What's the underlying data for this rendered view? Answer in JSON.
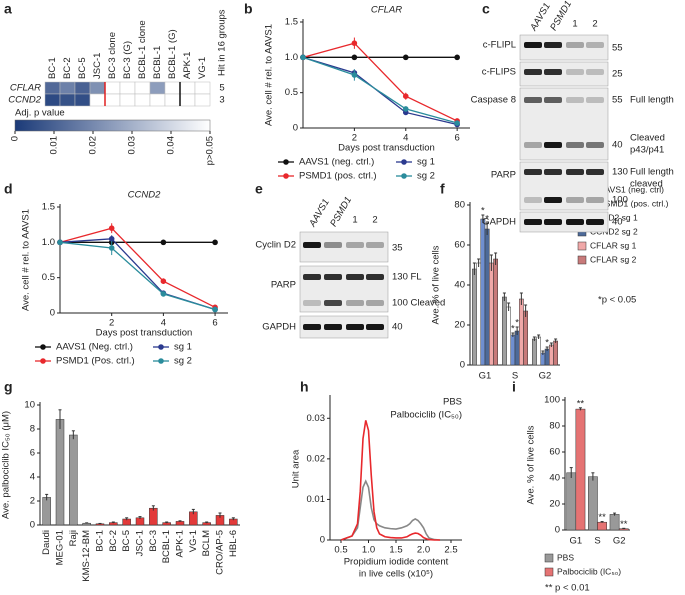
{
  "panel_labels": [
    "a",
    "b",
    "c",
    "d",
    "e",
    "f",
    "g",
    "h",
    "i"
  ],
  "chart_data": [
    {
      "type": "heatmap",
      "columns": [
        "BC-1",
        "BC-2",
        "BC-5",
        "JSC-1",
        "BC-3 clone",
        "BC-3 (G)",
        "BCBL-1 clone",
        "BCBL-1",
        "BCBL-1 (G)",
        "APK-1",
        "VG-1"
      ],
      "rows": [
        "CFLAR",
        "CCND2"
      ],
      "values": [
        [
          0.012,
          0.018,
          0.01,
          0.022,
          null,
          null,
          null,
          0.025,
          null,
          null,
          null
        ],
        [
          0.004,
          0.006,
          0.005,
          null,
          null,
          null,
          null,
          null,
          null,
          null,
          null
        ]
      ],
      "hits": [
        5,
        3
      ],
      "hits_title": "Hit in 16 groups",
      "colorbar_title": "Adj. p value",
      "clim": [
        0,
        0.05
      ],
      "cticks": [
        0,
        0.01,
        0.02,
        0.03,
        0.04,
        {
          "value": 0.05,
          "label": "p>0.05"
        }
      ],
      "colormap": [
        "#1b3a78",
        "#ffffff"
      ],
      "hits_color": "#3a9a6a"
    },
    {
      "type": "line",
      "title": "CFLAR",
      "ylabel": "Ave. cell # rel. to AAVS1",
      "xlabel": "Days post transduction",
      "x": [
        0,
        2,
        4,
        6
      ],
      "xlim": [
        0,
        6.5
      ],
      "xticks": [
        2,
        4,
        6
      ],
      "ylim": [
        0,
        1.5
      ],
      "yticks": [
        0,
        0.5,
        {
          "value": 1,
          "label": "1.0"
        },
        1.5
      ],
      "legend": "bottom",
      "series": [
        {
          "name": "AAVS1 (neg. ctrl.)",
          "color": "#111111",
          "values": [
            1,
            1,
            1,
            1
          ]
        },
        {
          "name": "PSMD1 (pos. ctrl.)",
          "color": "#e8282c",
          "values": [
            1,
            1.2,
            0.45,
            0.1
          ],
          "errors": [
            0,
            0.08,
            0.05,
            0.02
          ]
        },
        {
          "name": "sg 1",
          "color": "#2b3a8f",
          "values": [
            1,
            0.78,
            0.22,
            0.05
          ],
          "errors": [
            0,
            0.05,
            0.03,
            0.01
          ]
        },
        {
          "name": "sg 2",
          "color": "#2a8c9c",
          "values": [
            1,
            0.75,
            0.27,
            0.07
          ],
          "errors": [
            0,
            0.08,
            0.03,
            0.02
          ]
        }
      ]
    },
    {
      "type": "line",
      "title": "CCND2",
      "ylabel": "Ave. cell # rel. to AAVS1",
      "xlabel": "Days post transduction",
      "x": [
        0,
        2,
        4,
        6
      ],
      "xlim": [
        0,
        6.5
      ],
      "xticks": [
        2,
        4,
        6
      ],
      "ylim": [
        0,
        1.5
      ],
      "yticks": [
        0,
        0.5,
        {
          "value": 1,
          "label": "1.0"
        },
        1.5
      ],
      "legend": "bottom",
      "series": [
        {
          "name": "AAVS1 (Neg. ctrl.)",
          "color": "#111111",
          "values": [
            1,
            1,
            1,
            1
          ]
        },
        {
          "name": "PSMD1 (Pos. ctrl.)",
          "color": "#e8282c",
          "values": [
            1,
            1.2,
            0.45,
            0.08
          ],
          "errors": [
            0,
            0.07,
            0.04,
            0.02
          ]
        },
        {
          "name": "sg 1",
          "color": "#2b3a8f",
          "values": [
            1,
            1.05,
            0.28,
            0.05
          ],
          "errors": [
            0,
            0.05,
            0.03,
            0.01
          ]
        },
        {
          "name": "sg 2",
          "color": "#2a8c9c",
          "values": [
            1,
            0.92,
            0.27,
            0.05
          ],
          "errors": [
            0,
            0.1,
            0.03,
            0.01
          ]
        }
      ]
    },
    {
      "type": "bar",
      "ylabel": "Ave. % of live cells",
      "categories": [
        "G1",
        "S",
        "G2"
      ],
      "ylim": [
        0,
        80
      ],
      "yticks": [
        0,
        20,
        40,
        60,
        80
      ],
      "legend": "right",
      "series": [
        {
          "name": "sgAAVS1 (neg. ctrl)",
          "color": "#a0a0a0",
          "values": [
            48,
            34,
            13
          ],
          "errors": [
            3,
            2,
            1
          ]
        },
        {
          "name": "sgPSMD1 (pos. ctrl.)",
          "color": "#ffffff",
          "values": [
            51,
            29,
            14
          ],
          "errors": [
            2,
            2,
            1
          ]
        },
        {
          "name": "CCND2 sg 1",
          "color": "#6f8fd0",
          "values": [
            73,
            15,
            6
          ],
          "errors": [
            2,
            1,
            1
          ]
        },
        {
          "name": "CCND2 sg 2",
          "color": "#4d6a99",
          "values": [
            68,
            17,
            8
          ],
          "errors": [
            3,
            2,
            1
          ]
        },
        {
          "name": "CFLAR sg 1",
          "color": "#f0a8a8",
          "values": [
            51,
            33,
            10
          ],
          "errors": [
            4,
            3,
            1
          ]
        },
        {
          "name": "CFLAR sg 2",
          "color": "#c87a7a",
          "values": [
            53,
            27,
            12
          ],
          "errors": [
            3,
            3,
            1
          ]
        }
      ],
      "annotations": [
        "*",
        "*",
        "*",
        "*",
        "*"
      ],
      "note": "*p < 0.05"
    },
    {
      "type": "bar",
      "ylabel": "Ave. palbociclib IC₅₀ (μM)",
      "categories": [
        "Daudi",
        "MEG-01",
        "Raji",
        "KMS-12-BM",
        "BC-1",
        "BC-2",
        "BC-5",
        "JSC-1",
        "BC-3",
        "BCBL-1",
        "APK-1",
        "VG-1",
        "BCLM",
        "CRO/AP-5",
        "HBL-6"
      ],
      "ylim": [
        0,
        10
      ],
      "yticks": [
        0,
        2,
        4,
        6,
        8,
        10
      ],
      "rotate_labels": true,
      "series": [
        {
          "values": [
            2.3,
            8.8,
            7.5,
            0.15,
            0.1,
            0.2,
            0.5,
            0.6,
            1.4,
            0.2,
            0.3,
            1.1,
            0.2,
            0.8,
            0.5
          ],
          "errors": [
            0.25,
            0.8,
            0.35,
            0.03,
            0.03,
            0.05,
            0.1,
            0.1,
            0.2,
            0.05,
            0.05,
            0.2,
            0.05,
            0.2,
            0.1
          ],
          "colors": [
            "#999999",
            "#999999",
            "#999999",
            "#999999",
            "#e23a3a",
            "#e23a3a",
            "#e23a3a",
            "#e23a3a",
            "#e23a3a",
            "#e23a3a",
            "#e23a3a",
            "#e23a3a",
            "#e23a3a",
            "#e23a3a",
            "#e23a3a"
          ]
        }
      ]
    },
    {
      "type": "line",
      "ylabel": "Unit area",
      "xlabel": [
        "Propidium iodide content",
        "in live cells (x10⁵)"
      ],
      "x": [
        0.5,
        0.6,
        0.7,
        0.8,
        0.85,
        0.9,
        0.95,
        1.0,
        1.05,
        1.1,
        1.15,
        1.2,
        1.3,
        1.4,
        1.5,
        1.6,
        1.7,
        1.75,
        1.8,
        1.85,
        1.9,
        1.95,
        2.0,
        2.05,
        2.1,
        2.2,
        2.3
      ],
      "xlim": [
        0.3,
        2.7
      ],
      "xticks": [
        0.5,
        {
          "value": 1,
          "label": "1.0"
        },
        1.5,
        {
          "value": 2,
          "label": "2.0"
        },
        2.5
      ],
      "ylim": [
        0,
        0.035
      ],
      "yticks": [
        0,
        0.01,
        0.02,
        0.03
      ],
      "markers": false,
      "legend": "upper right",
      "series": [
        {
          "name": "PBS",
          "color": "#888888",
          "values": [
            0,
            0.0005,
            0.001,
            0.003,
            0.008,
            0.013,
            0.0145,
            0.013,
            0.008,
            0.005,
            0.004,
            0.0035,
            0.003,
            0.0028,
            0.0027,
            0.003,
            0.0035,
            0.004,
            0.0048,
            0.0052,
            0.0048,
            0.004,
            0.003,
            0.0015,
            0.0005,
            0.0001,
            0
          ]
        },
        {
          "name": "Palbociclib (IC₅₀)",
          "color": "#e8282c",
          "values": [
            0,
            0.0005,
            0.001,
            0.004,
            0.012,
            0.025,
            0.0295,
            0.027,
            0.016,
            0.007,
            0.003,
            0.0015,
            0.0008,
            0.0006,
            0.0005,
            0.0005,
            0.0008,
            0.0012,
            0.0015,
            0.0017,
            0.0016,
            0.0012,
            0.0006,
            0.0003,
            0.0001,
            0,
            0
          ]
        }
      ]
    },
    {
      "type": "bar",
      "ylabel": "Ave. % of live cells",
      "categories": [
        "G1",
        "S",
        "G2"
      ],
      "ylim": [
        0,
        100
      ],
      "yticks": [
        0,
        20,
        40,
        60,
        80,
        100
      ],
      "legend": "bottom",
      "series": [
        {
          "name": "PBS",
          "color": "#999999",
          "values": [
            44,
            41,
            12
          ],
          "errors": [
            4,
            3,
            1
          ]
        },
        {
          "name": "Palbociclib (IC₅₀)",
          "color": "#e57373",
          "values": [
            93,
            6,
            1
          ],
          "errors": [
            1,
            0.5,
            0.3
          ]
        }
      ],
      "annotations": [
        "**",
        "**",
        "**"
      ],
      "note": "** p < 0.01"
    }
  ],
  "blots": [
    {
      "lanes": [
        "AAVS1",
        "PSMD1",
        "1",
        "2"
      ],
      "proteins": [
        "c-FLIPL",
        "c-FLIPS",
        "Caspase 8",
        "PARP",
        "GAPDH"
      ],
      "markers": [
        "55",
        "25",
        "55",
        "40",
        "130",
        "100",
        "40"
      ],
      "notes": [
        [
          "Full length"
        ],
        [
          "Cleaved",
          "p43/p41"
        ],
        [
          "Full length",
          "cleaved"
        ]
      ]
    },
    {
      "lanes": [
        "AAVS1",
        "PSMD1",
        "1",
        "2"
      ],
      "proteins": [
        "Cyclin D2",
        "PARP",
        "GAPDH"
      ],
      "markers": [
        "35",
        "130 FL",
        "100 Cleaved",
        "40"
      ]
    }
  ]
}
